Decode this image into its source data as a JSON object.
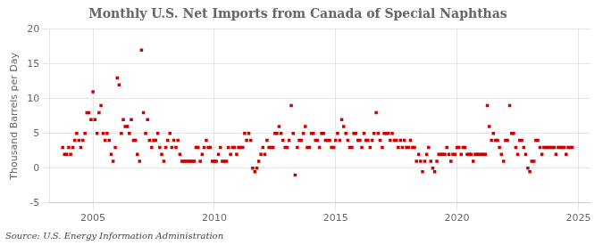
{
  "chart_data": {
    "type": "scatter",
    "title": "Monthly U.S. Net Imports from Canada of Special Naphthas",
    "ylabel": "Thousand Barrels per Day",
    "annotations": [
      "Source: U.S. Energy Information Administration"
    ],
    "color": "#cc0000",
    "marker": "square",
    "grid": true,
    "xlim": [
      2003.2,
      2025.5
    ],
    "ylim": [
      -5,
      20
    ],
    "xticks": [
      2005,
      2010,
      2015,
      2020,
      2025
    ],
    "yticks": [
      -5,
      0,
      5,
      10,
      15,
      20
    ],
    "x": [
      2003.75,
      2003.83,
      2003.92,
      2004.0,
      2004.08,
      2004.17,
      2004.25,
      2004.33,
      2004.42,
      2004.5,
      2004.58,
      2004.67,
      2004.75,
      2004.83,
      2004.92,
      2005.0,
      2005.08,
      2005.17,
      2005.25,
      2005.33,
      2005.42,
      2005.5,
      2005.58,
      2005.67,
      2005.75,
      2005.83,
      2005.92,
      2006.0,
      2006.08,
      2006.17,
      2006.25,
      2006.33,
      2006.42,
      2006.5,
      2006.58,
      2006.67,
      2006.75,
      2006.83,
      2006.92,
      2007.0,
      2007.08,
      2007.17,
      2007.25,
      2007.33,
      2007.42,
      2007.5,
      2007.58,
      2007.67,
      2007.75,
      2007.83,
      2007.92,
      2008.0,
      2008.08,
      2008.17,
      2008.25,
      2008.33,
      2008.42,
      2008.5,
      2008.58,
      2008.67,
      2008.75,
      2008.83,
      2008.92,
      2009.0,
      2009.08,
      2009.17,
      2009.25,
      2009.33,
      2009.42,
      2009.5,
      2009.58,
      2009.67,
      2009.75,
      2009.83,
      2009.92,
      2010.0,
      2010.08,
      2010.17,
      2010.25,
      2010.33,
      2010.42,
      2010.5,
      2010.58,
      2010.67,
      2010.75,
      2010.83,
      2010.92,
      2011.0,
      2011.08,
      2011.17,
      2011.25,
      2011.33,
      2011.42,
      2011.5,
      2011.58,
      2011.67,
      2011.75,
      2011.83,
      2011.92,
      2012.0,
      2012.08,
      2012.17,
      2012.25,
      2012.33,
      2012.42,
      2012.5,
      2012.58,
      2012.67,
      2012.75,
      2012.83,
      2012.92,
      2013.0,
      2013.08,
      2013.17,
      2013.25,
      2013.33,
      2013.42,
      2013.5,
      2013.58,
      2013.67,
      2013.75,
      2013.83,
      2013.92,
      2014.0,
      2014.08,
      2014.17,
      2014.25,
      2014.33,
      2014.42,
      2014.5,
      2014.58,
      2014.67,
      2014.75,
      2014.83,
      2014.92,
      2015.0,
      2015.08,
      2015.17,
      2015.25,
      2015.33,
      2015.42,
      2015.5,
      2015.58,
      2015.67,
      2015.75,
      2015.83,
      2015.92,
      2016.0,
      2016.08,
      2016.17,
      2016.25,
      2016.33,
      2016.42,
      2016.5,
      2016.58,
      2016.67,
      2016.75,
      2016.83,
      2016.92,
      2017.0,
      2017.08,
      2017.17,
      2017.25,
      2017.33,
      2017.42,
      2017.5,
      2017.58,
      2017.67,
      2017.75,
      2017.83,
      2017.92,
      2018.0,
      2018.08,
      2018.17,
      2018.25,
      2018.33,
      2018.42,
      2018.5,
      2018.58,
      2018.67,
      2018.75,
      2018.83,
      2018.92,
      2019.0,
      2019.08,
      2019.17,
      2019.25,
      2019.33,
      2019.42,
      2019.5,
      2019.58,
      2019.67,
      2019.75,
      2019.83,
      2019.92,
      2020.0,
      2020.08,
      2020.17,
      2020.25,
      2020.33,
      2020.42,
      2020.5,
      2020.58,
      2020.67,
      2020.75,
      2020.83,
      2020.92,
      2021.0,
      2021.08,
      2021.17,
      2021.25,
      2021.33,
      2021.42,
      2021.5,
      2021.58,
      2021.67,
      2021.75,
      2021.83,
      2021.92,
      2022.0,
      2022.08,
      2022.17,
      2022.25,
      2022.33,
      2022.42,
      2022.5,
      2022.58,
      2022.67,
      2022.75,
      2022.83,
      2022.92,
      2023.0,
      2023.08,
      2023.17,
      2023.25,
      2023.33,
      2023.42,
      2023.5,
      2023.58,
      2023.67,
      2023.75,
      2023.83,
      2023.92,
      2024.0,
      2024.08,
      2024.17,
      2024.25,
      2024.33,
      2024.42,
      2024.5,
      2024.58,
      2024.67,
      2024.75
    ],
    "values": [
      3,
      2,
      2,
      3,
      2,
      3,
      4,
      5,
      4,
      3,
      4,
      5,
      8,
      8,
      7,
      11,
      7,
      5,
      8,
      9,
      5,
      4,
      5,
      4,
      2,
      1,
      3,
      13,
      12,
      5,
      7,
      6,
      6,
      5,
      7,
      4,
      4,
      2,
      1,
      17,
      8,
      5,
      7,
      4,
      3,
      4,
      4,
      5,
      3,
      2,
      1,
      3,
      4,
      5,
      3,
      4,
      3,
      4,
      2,
      1,
      1,
      1,
      1,
      1,
      1,
      1,
      3,
      3,
      1,
      2,
      3,
      4,
      3,
      3,
      1,
      1,
      1,
      2,
      3,
      1,
      1,
      1,
      3,
      2,
      3,
      3,
      2,
      3,
      3,
      3,
      5,
      4,
      5,
      4,
      0,
      -0.5,
      0,
      1,
      2,
      3,
      2,
      4,
      3,
      3,
      3,
      5,
      5,
      6,
      5,
      4,
      3,
      3,
      4,
      9,
      5,
      -1,
      3,
      4,
      4,
      5,
      6,
      3,
      3,
      5,
      5,
      4,
      4,
      3,
      5,
      5,
      4,
      4,
      4,
      3,
      3,
      4,
      5,
      4,
      7,
      6,
      5,
      4,
      3,
      3,
      5,
      5,
      4,
      4,
      3,
      5,
      4,
      4,
      3,
      4,
      5,
      8,
      5,
      4,
      3,
      5,
      5,
      5,
      4,
      5,
      4,
      4,
      3,
      4,
      3,
      4,
      3,
      3,
      4,
      3,
      3,
      1,
      2,
      1,
      -0.5,
      1,
      2,
      3,
      1,
      0,
      -0.5,
      1,
      2,
      2,
      2,
      2,
      3,
      2,
      1,
      2,
      2,
      3,
      3,
      2,
      3,
      3,
      2,
      2,
      2,
      1,
      2,
      2,
      2,
      2,
      2,
      2,
      9,
      6,
      4,
      5,
      4,
      4,
      3,
      2,
      1,
      4,
      4,
      9,
      5,
      5,
      3,
      2,
      4,
      4,
      3,
      2,
      0,
      -0.5,
      1,
      1,
      4,
      4,
      3,
      2,
      3,
      3,
      3,
      3,
      3,
      3,
      2,
      3,
      3,
      3,
      3,
      2,
      3,
      3,
      3
    ]
  }
}
